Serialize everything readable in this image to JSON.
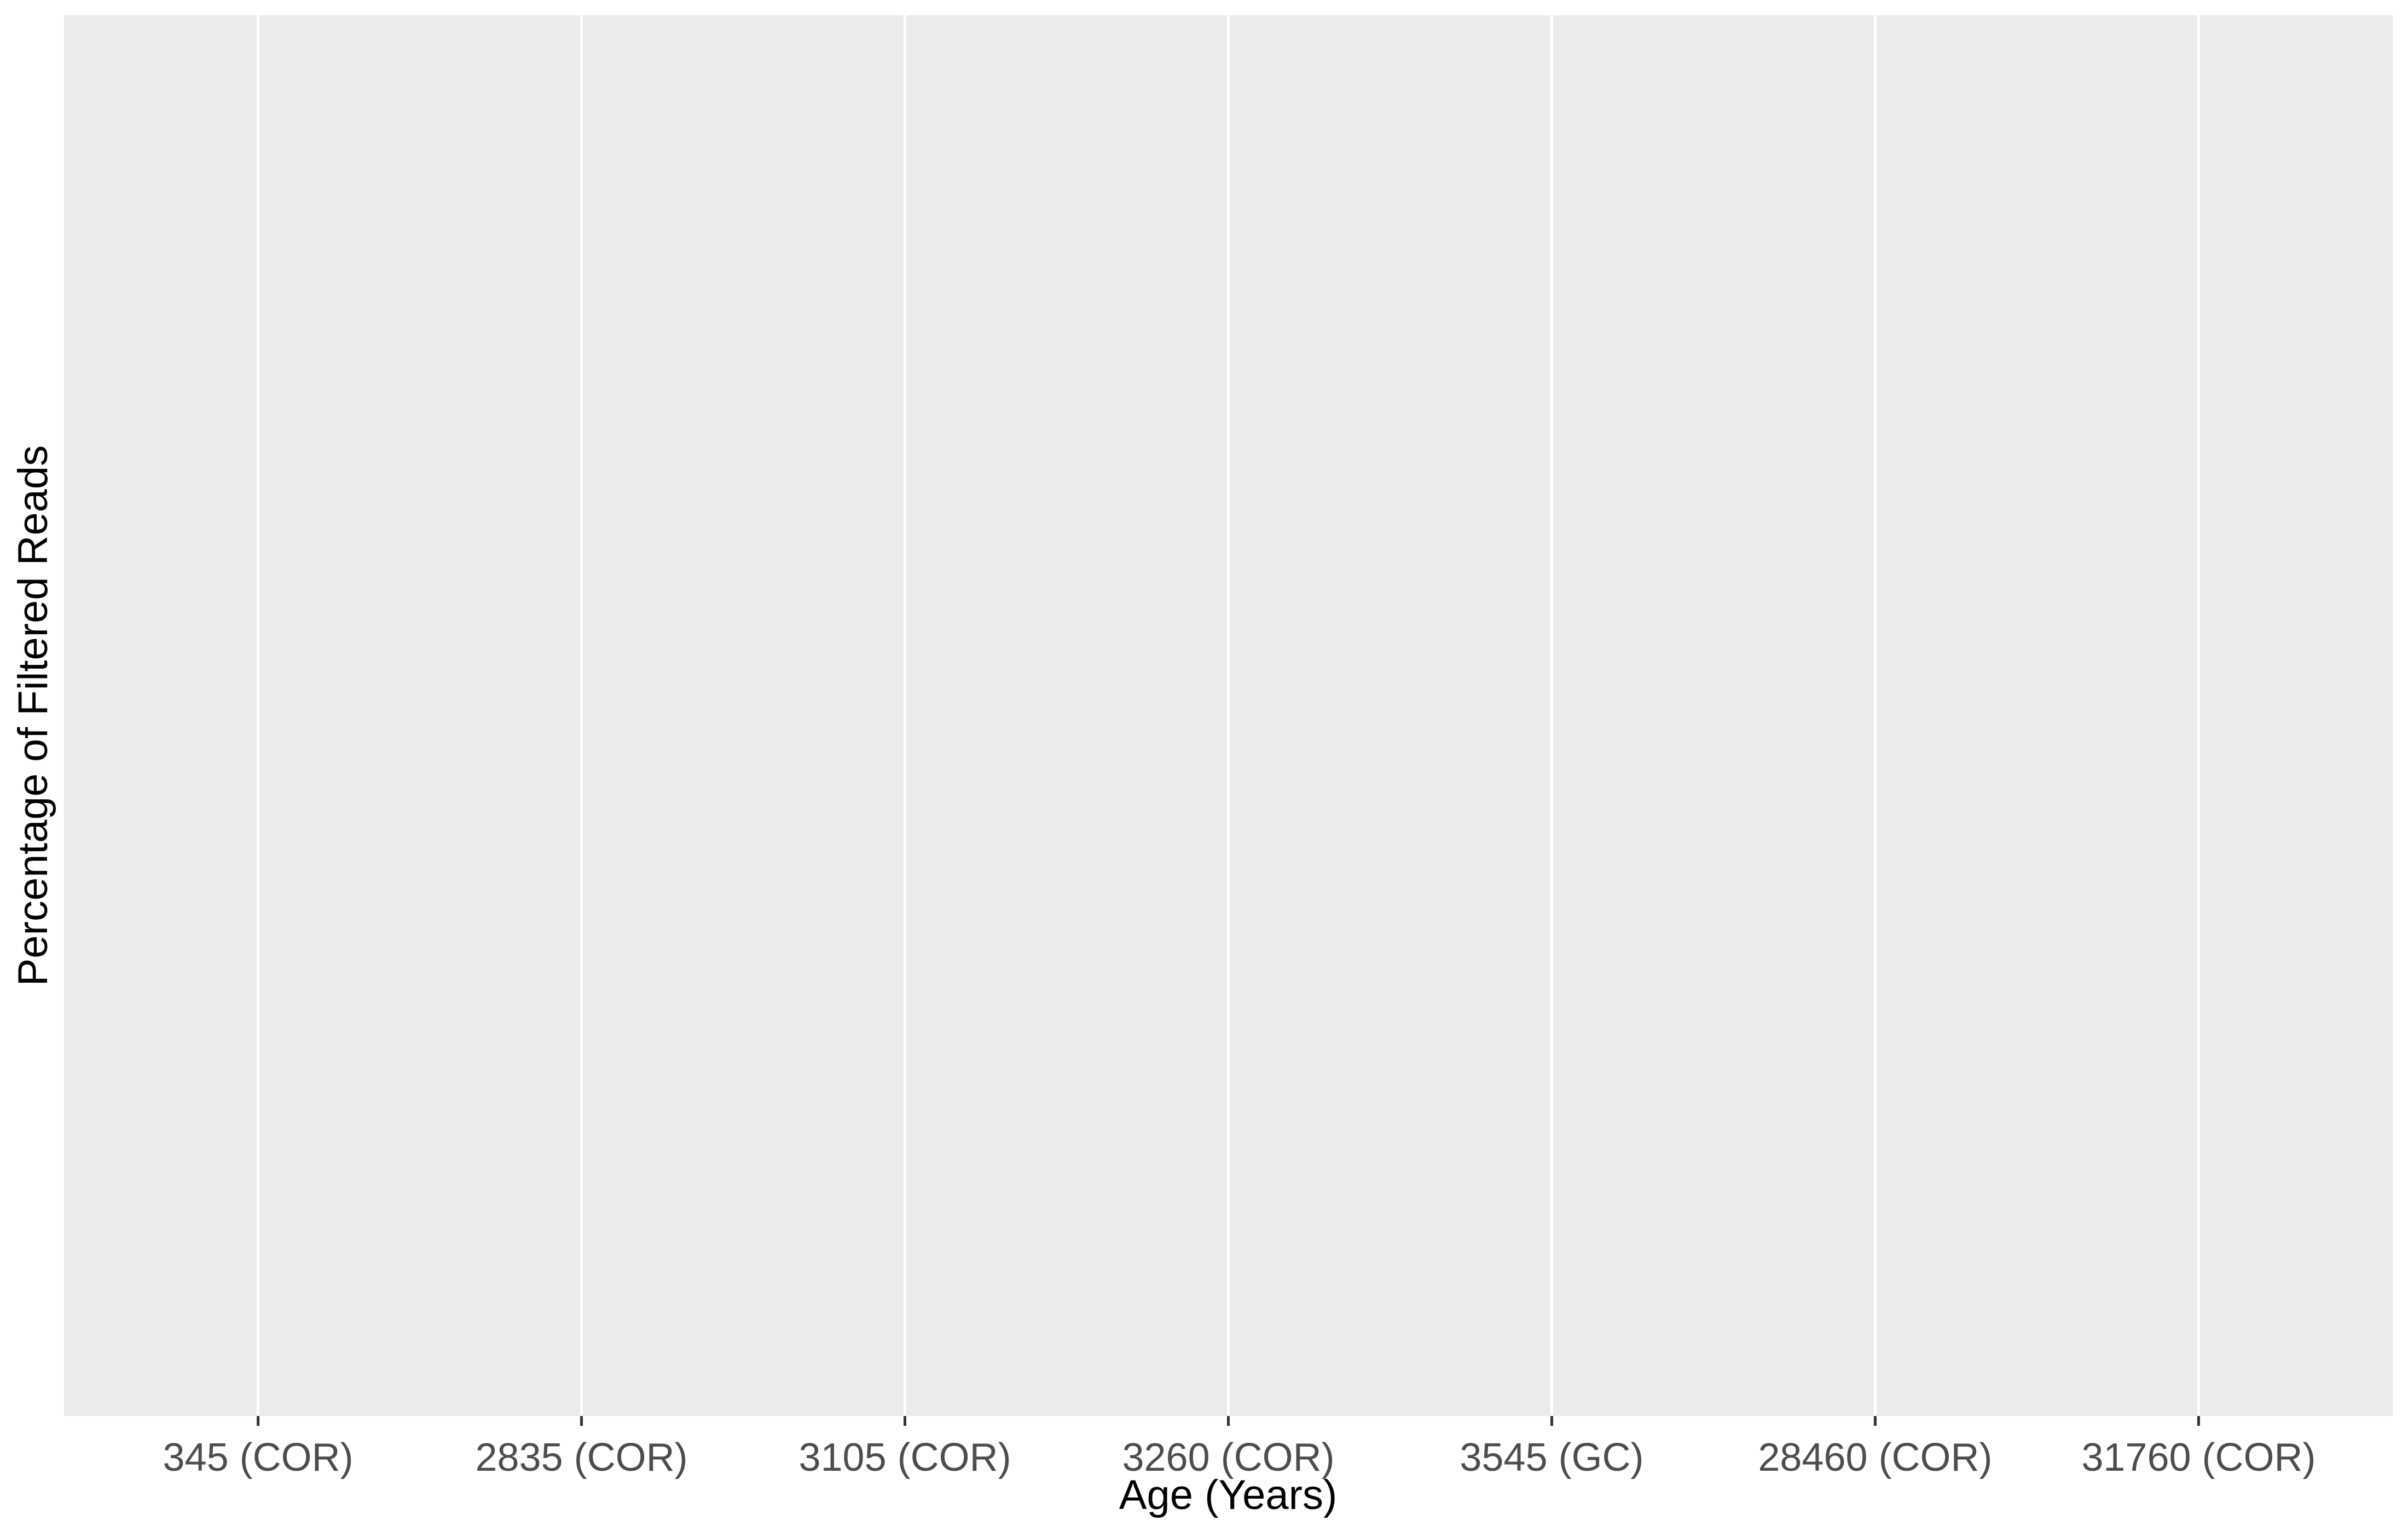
{
  "chart_data": {
    "type": "bar",
    "title": "",
    "xlabel": "Age (Years)",
    "ylabel": "Percentage of Filtered Reads",
    "categories": [
      "345 (COR)",
      "2835 (COR)",
      "3105 (COR)",
      "3260 (COR)",
      "3545 (GC)",
      "28460 (COR)",
      "31760 (COR)"
    ],
    "series": [],
    "grid": true,
    "legend": "none",
    "colors": {
      "panel_background": "#EBEBEB",
      "grid_line": "#FFFFFF",
      "tick_mark": "#333333",
      "tick_label": "#4D4D4D",
      "axis_title": "#000000"
    }
  }
}
